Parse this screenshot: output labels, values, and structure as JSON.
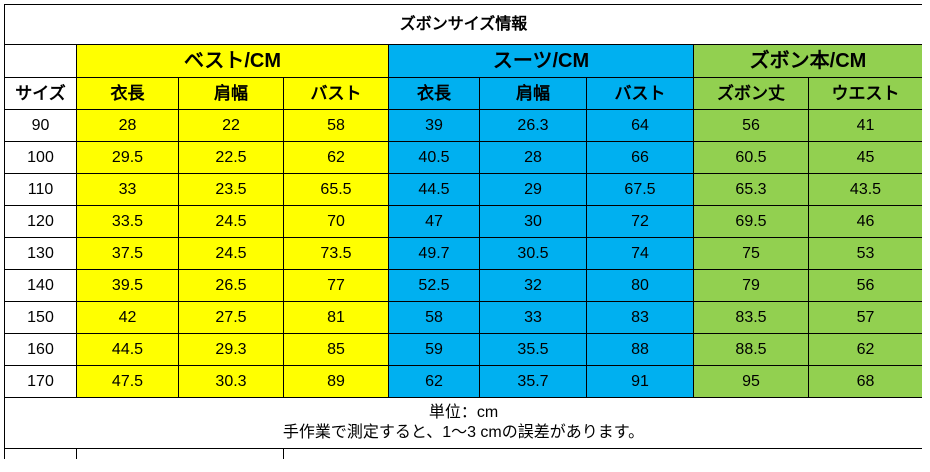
{
  "title": "ズボンサイズ情報",
  "size_header": "サイズ",
  "groups": [
    {
      "name": "ベスト/CM",
      "columns": [
        "衣長",
        "肩幅",
        "バスト"
      ],
      "color": "#ffff00"
    },
    {
      "name": "スーツ/CM",
      "columns": [
        "衣長",
        "肩幅",
        "バスト"
      ],
      "color": "#00b0f0"
    },
    {
      "name": "ズボン本/CM",
      "columns": [
        "ズボン丈",
        "ウエスト"
      ],
      "color": "#92d050"
    }
  ],
  "rows": [
    {
      "size": "90",
      "values": [
        "28",
        "22",
        "58",
        "39",
        "26.3",
        "64",
        "56",
        "41"
      ]
    },
    {
      "size": "100",
      "values": [
        "29.5",
        "22.5",
        "62",
        "40.5",
        "28",
        "66",
        "60.5",
        "45"
      ]
    },
    {
      "size": "110",
      "values": [
        "33",
        "23.5",
        "65.5",
        "44.5",
        "29",
        "67.5",
        "65.3",
        "43.5"
      ]
    },
    {
      "size": "120",
      "values": [
        "33.5",
        "24.5",
        "70",
        "47",
        "30",
        "72",
        "69.5",
        "46"
      ]
    },
    {
      "size": "130",
      "values": [
        "37.5",
        "24.5",
        "73.5",
        "49.7",
        "30.5",
        "74",
        "75",
        "53"
      ]
    },
    {
      "size": "140",
      "values": [
        "39.5",
        "26.5",
        "77",
        "52.5",
        "32",
        "80",
        "79",
        "56"
      ]
    },
    {
      "size": "150",
      "values": [
        "42",
        "27.5",
        "81",
        "58",
        "33",
        "83",
        "83.5",
        "57"
      ]
    },
    {
      "size": "160",
      "values": [
        "44.5",
        "29.3",
        "85",
        "59",
        "35.5",
        "88",
        "88.5",
        "62"
      ]
    },
    {
      "size": "170",
      "values": [
        "47.5",
        "30.3",
        "89",
        "62",
        "35.7",
        "91",
        "95",
        "68"
      ]
    }
  ],
  "note": {
    "line1": "単位：cm",
    "line2": "手作業で測定すると、1～3 cmの誤差があります。"
  }
}
